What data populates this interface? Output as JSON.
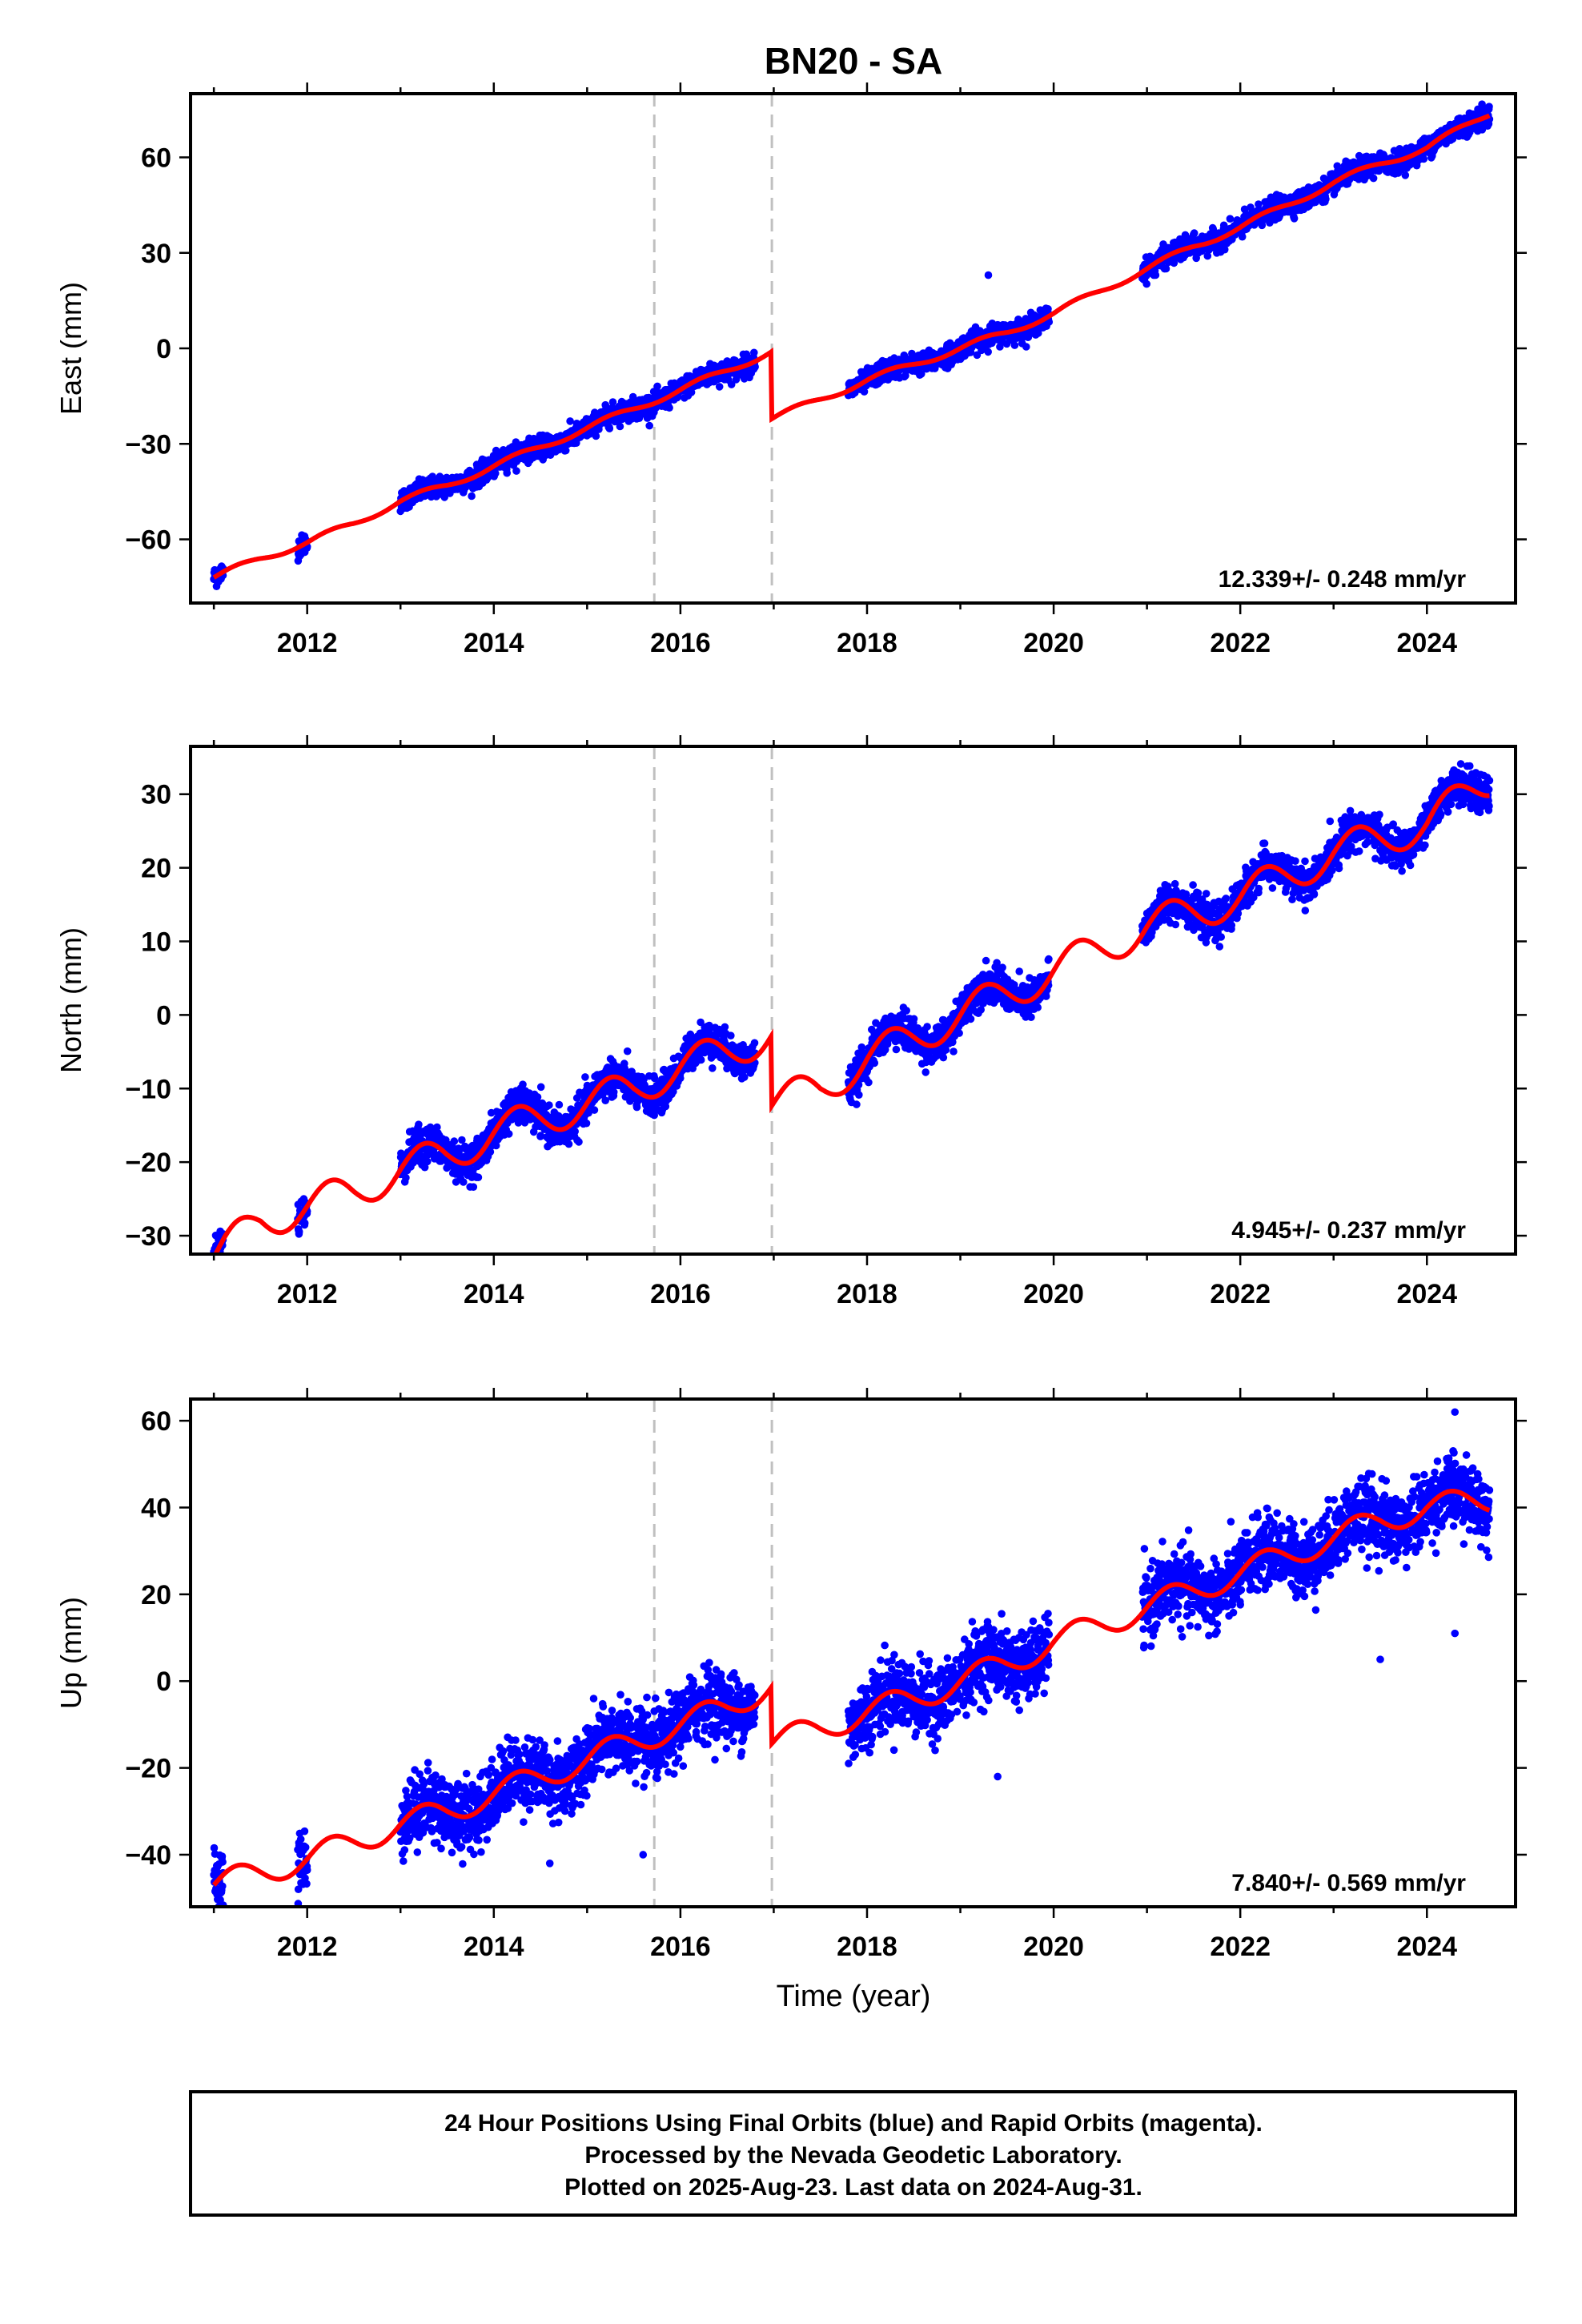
{
  "chart_data": {
    "title": "BN20 - SA",
    "xlabel": "Time (year)",
    "xlim": [
      2010.75,
      2024.95
    ],
    "xticks": [
      2012,
      2014,
      2016,
      2018,
      2020,
      2022,
      2024
    ],
    "xtick_labels": [
      "2012",
      "2014",
      "2016",
      "2018",
      "2020",
      "2022",
      "2024"
    ],
    "offset_lines": [
      2015.72,
      2016.98
    ],
    "colors": {
      "points": "#0000ff",
      "model": "#ff0000",
      "offset_lines": "#c0c0c0"
    },
    "panels": [
      {
        "name": "east",
        "type": "scatter",
        "ylabel": "East (mm)",
        "ylim": [
          -80,
          80
        ],
        "yticks": [
          -60,
          -30,
          0,
          30,
          60
        ],
        "ytick_labels": [
          "−60",
          "−30",
          "0",
          "30",
          "60"
        ],
        "rate_label": "12.339+/- 0.248 mm/yr",
        "data_segments": [
          [
            2011.0,
            2011.1
          ],
          [
            2011.9,
            2012.0
          ],
          [
            2013.0,
            2016.8
          ],
          [
            2017.8,
            2019.95
          ],
          [
            2020.95,
            2024.67
          ]
        ],
        "model": {
          "knots_x": [
            2011.0,
            2011.5,
            2012.0,
            2012.5,
            2013.0,
            2013.5,
            2014.0,
            2014.5,
            2015.0,
            2015.5,
            2016.0,
            2016.5,
            2016.97,
            2016.98,
            2017.5,
            2018.0,
            2018.5,
            2019.0,
            2019.5,
            2020.0,
            2020.5,
            2021.0,
            2021.5,
            2022.0,
            2022.5,
            2023.0,
            2023.5,
            2024.0,
            2024.67
          ],
          "knots_y": [
            -72,
            -66,
            -61,
            -55,
            -48,
            -43,
            -37,
            -31,
            -25,
            -19,
            -13,
            -7,
            -1,
            -22,
            -16,
            -10,
            -5,
            0,
            5,
            11,
            18,
            25,
            32,
            38,
            45,
            52,
            58,
            63,
            74
          ],
          "seasonal_amp": 1.0
        },
        "noise_sd": 1.6,
        "outliers": [
          {
            "x": 2019.3,
            "y": 23
          }
        ]
      },
      {
        "name": "north",
        "type": "scatter",
        "ylabel": "North (mm)",
        "ylim": [
          -32.5,
          36.5
        ],
        "yticks": [
          -30,
          -20,
          -10,
          0,
          10,
          20,
          30
        ],
        "ytick_labels": [
          "−30",
          "−20",
          "−10",
          "0",
          "10",
          "20",
          "30"
        ],
        "rate_label": "4.945+/- 0.237 mm/yr",
        "data_segments": [
          [
            2011.0,
            2011.1
          ],
          [
            2011.9,
            2012.0
          ],
          [
            2013.0,
            2016.8
          ],
          [
            2017.8,
            2019.95
          ],
          [
            2020.95,
            2024.67
          ]
        ],
        "model": {
          "knots_x": [
            2011.0,
            2011.5,
            2012.0,
            2012.5,
            2013.0,
            2013.5,
            2014.0,
            2014.5,
            2015.0,
            2015.5,
            2016.0,
            2016.5,
            2016.97,
            2016.98,
            2017.5,
            2018.0,
            2018.5,
            2019.0,
            2019.5,
            2020.0,
            2020.5,
            2021.0,
            2021.5,
            2022.0,
            2022.5,
            2023.0,
            2023.5,
            2024.0,
            2024.67
          ],
          "knots_y": [
            -33,
            -28,
            -26,
            -24,
            -21,
            -19,
            -16,
            -14,
            -12,
            -10,
            -7,
            -5,
            -2.5,
            -12,
            -10,
            -6,
            -3,
            0,
            3,
            6,
            9,
            12,
            14,
            16,
            19,
            22,
            24,
            26,
            32
          ],
          "seasonal_amp": 2.5
        },
        "noise_sd": 1.2,
        "outliers": []
      },
      {
        "name": "up",
        "type": "scatter",
        "ylabel": "Up (mm)",
        "ylim": [
          -52,
          65
        ],
        "yticks": [
          -40,
          -20,
          0,
          20,
          40,
          60
        ],
        "ytick_labels": [
          "−40",
          "−20",
          "0",
          "20",
          "40",
          "60"
        ],
        "rate_label": "7.840+/- 0.569 mm/yr",
        "data_segments": [
          [
            2011.0,
            2011.1
          ],
          [
            2011.9,
            2012.0
          ],
          [
            2013.0,
            2016.8
          ],
          [
            2017.8,
            2019.95
          ],
          [
            2020.95,
            2024.67
          ]
        ],
        "model": {
          "knots_x": [
            2011.0,
            2011.5,
            2012.0,
            2012.5,
            2013.0,
            2013.5,
            2014.0,
            2014.5,
            2015.0,
            2015.5,
            2016.0,
            2016.5,
            2016.97,
            2016.98,
            2017.5,
            2018.0,
            2018.5,
            2019.0,
            2019.5,
            2020.0,
            2020.5,
            2021.0,
            2021.5,
            2022.0,
            2022.5,
            2023.0,
            2023.5,
            2024.0,
            2024.67
          ],
          "knots_y": [
            -47,
            -44,
            -41,
            -37,
            -33,
            -30,
            -26,
            -22,
            -18,
            -14,
            -10,
            -6,
            -1,
            -14,
            -11,
            -7,
            -4,
            0,
            4,
            9,
            13,
            17,
            21,
            25,
            29,
            33,
            37,
            40,
            42
          ],
          "seasonal_amp": 3.0
        },
        "noise_sd": 4.0,
        "outliers": [
          {
            "x": 2015.6,
            "y": -40
          },
          {
            "x": 2023.5,
            "y": 5
          },
          {
            "x": 2024.3,
            "y": 11
          },
          {
            "x": 2024.3,
            "y": 62
          },
          {
            "x": 2019.4,
            "y": -22
          },
          {
            "x": 2014.6,
            "y": -42
          }
        ]
      }
    ]
  },
  "footer": {
    "line1": "24 Hour Positions Using Final Orbits (blue) and Rapid Orbits (magenta).",
    "line2": "Processed by the Nevada Geodetic Laboratory.",
    "line3": "Plotted on 2025-Aug-23. Last data on 2024-Aug-31."
  }
}
